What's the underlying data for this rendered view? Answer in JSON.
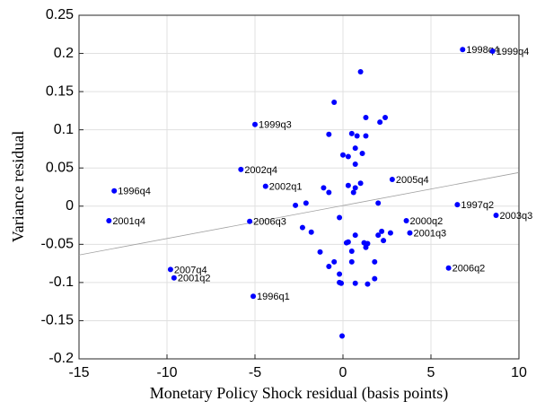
{
  "chart_data": {
    "type": "scatter",
    "x_label": "Monetary Policy Shock residual (basis points)",
    "y_label": "Variance residual",
    "xlim": [
      -15,
      10
    ],
    "xticks": [
      -15,
      -10,
      -5,
      0,
      5,
      10
    ],
    "ylim": [
      -0.2,
      0.25
    ],
    "yticks": [
      -0.2,
      -0.15,
      -0.1,
      -0.05,
      0,
      0.05,
      0.1,
      0.15,
      0.2,
      0.25
    ],
    "grid": true,
    "color": "#0000ff",
    "x": [
      6.8,
      8.5,
      -5.0,
      -5.8,
      -4.4,
      -13.0,
      -13.3,
      -5.3,
      2.8,
      6.5,
      8.7,
      3.6,
      3.8,
      6.0,
      -9.8,
      -9.6,
      -5.1,
      2.4,
      2.1,
      1.3,
      1.0,
      -0.5,
      -0.8,
      0.5,
      0.8,
      1.3,
      0.7,
      1.1,
      0.0,
      0.3,
      0.7,
      -1.1,
      -0.8,
      0.3,
      0.7,
      1.0,
      0.6,
      -2.7,
      -2.1,
      2.0,
      -0.2,
      -2.3,
      -1.8,
      2.0,
      2.2,
      2.7,
      2.3,
      0.7,
      0.3,
      0.2,
      1.2,
      1.3,
      1.4,
      -1.3,
      0.5,
      -0.5,
      -0.8,
      0.5,
      1.8,
      -0.2,
      1.8,
      -0.2,
      -0.1,
      0.7,
      1.4,
      -0.05
    ],
    "y": [
      0.205,
      0.203,
      0.107,
      0.048,
      0.026,
      0.02,
      -0.019,
      -0.02,
      0.035,
      0.002,
      -0.012,
      -0.019,
      -0.035,
      -0.081,
      -0.083,
      -0.094,
      -0.118,
      0.116,
      0.11,
      0.116,
      0.176,
      0.136,
      0.094,
      0.095,
      0.092,
      0.092,
      0.076,
      0.069,
      0.067,
      0.065,
      0.055,
      0.024,
      0.018,
      0.027,
      0.024,
      0.03,
      0.018,
      0.001,
      0.004,
      0.004,
      -0.015,
      -0.028,
      -0.034,
      -0.038,
      -0.033,
      -0.035,
      -0.045,
      -0.038,
      -0.047,
      -0.048,
      -0.048,
      -0.054,
      -0.049,
      -0.06,
      -0.059,
      -0.073,
      -0.079,
      -0.073,
      -0.073,
      -0.089,
      -0.095,
      -0.1,
      -0.101,
      -0.101,
      -0.102,
      -0.17
    ],
    "labels": [
      "1998q4",
      "1999q4",
      "1999q3",
      "2002q4",
      "2002q1",
      "1996q4",
      "2001q4",
      "2006q3",
      "2005q4",
      "1997q2",
      "2003q3",
      "2000q2",
      "2001q3",
      "2006q2",
      "2007q4",
      "2001q2",
      "1996q1",
      null,
      null,
      null,
      null,
      null,
      null,
      null,
      null,
      null,
      null,
      null,
      null,
      null,
      null,
      null,
      null,
      null,
      null,
      null,
      null,
      null,
      null,
      null,
      null,
      null,
      null,
      null,
      null,
      null,
      null,
      null,
      null,
      null,
      null,
      null,
      null,
      null,
      null,
      null,
      null,
      null,
      null,
      null,
      null,
      null,
      null,
      null,
      null,
      null
    ],
    "fit_line": {
      "x": [
        -15,
        10
      ],
      "y": [
        -0.064,
        0.044
      ],
      "color": "#a0a0a0"
    }
  }
}
